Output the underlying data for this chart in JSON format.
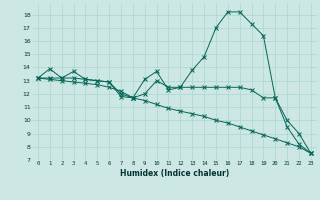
{
  "title": "",
  "xlabel": "Humidex (Indice chaleur)",
  "bg_color": "#cde8e4",
  "line_color": "#006655",
  "grid_color": "#a8d5cc",
  "xlim": [
    -0.5,
    23.5
  ],
  "ylim": [
    7,
    18.8
  ],
  "yticks": [
    7,
    8,
    9,
    10,
    11,
    12,
    13,
    14,
    15,
    16,
    17,
    18
  ],
  "xticks": [
    0,
    1,
    2,
    3,
    4,
    5,
    6,
    7,
    8,
    9,
    10,
    11,
    12,
    13,
    14,
    15,
    16,
    17,
    18,
    19,
    20,
    21,
    22,
    23
  ],
  "series1_x": [
    0,
    1,
    2,
    3,
    4,
    5,
    6,
    7,
    8,
    9,
    10,
    11,
    12,
    13,
    14,
    15,
    16,
    17,
    18,
    19,
    20,
    21,
    22,
    23
  ],
  "series1_y": [
    13.2,
    13.9,
    13.2,
    13.7,
    13.1,
    13.0,
    12.9,
    11.8,
    11.7,
    13.1,
    13.7,
    12.3,
    12.5,
    13.8,
    14.8,
    17.0,
    18.2,
    18.2,
    17.3,
    16.4,
    11.7,
    10.0,
    9.0,
    7.5
  ],
  "series2_x": [
    0,
    1,
    2,
    3,
    4,
    5,
    6,
    7,
    8,
    9,
    10,
    11,
    12,
    13,
    14,
    15,
    16,
    17,
    18,
    19,
    20,
    21,
    22,
    23
  ],
  "series2_y": [
    13.2,
    13.2,
    13.2,
    13.2,
    13.1,
    13.0,
    12.9,
    12.0,
    11.7,
    12.0,
    13.0,
    12.5,
    12.5,
    12.5,
    12.5,
    12.5,
    12.5,
    12.5,
    12.3,
    11.7,
    11.7,
    9.5,
    8.2,
    7.5
  ],
  "series3_x": [
    0,
    1,
    2,
    3,
    4,
    5,
    6,
    7,
    8,
    9,
    10,
    11,
    12,
    13,
    14,
    15,
    16,
    17,
    18,
    19,
    20,
    21,
    22,
    23
  ],
  "series3_y": [
    13.2,
    13.1,
    13.0,
    12.9,
    12.8,
    12.7,
    12.5,
    12.2,
    11.7,
    11.5,
    11.2,
    10.9,
    10.7,
    10.5,
    10.3,
    10.0,
    9.8,
    9.5,
    9.2,
    8.9,
    8.6,
    8.3,
    8.0,
    7.5
  ]
}
